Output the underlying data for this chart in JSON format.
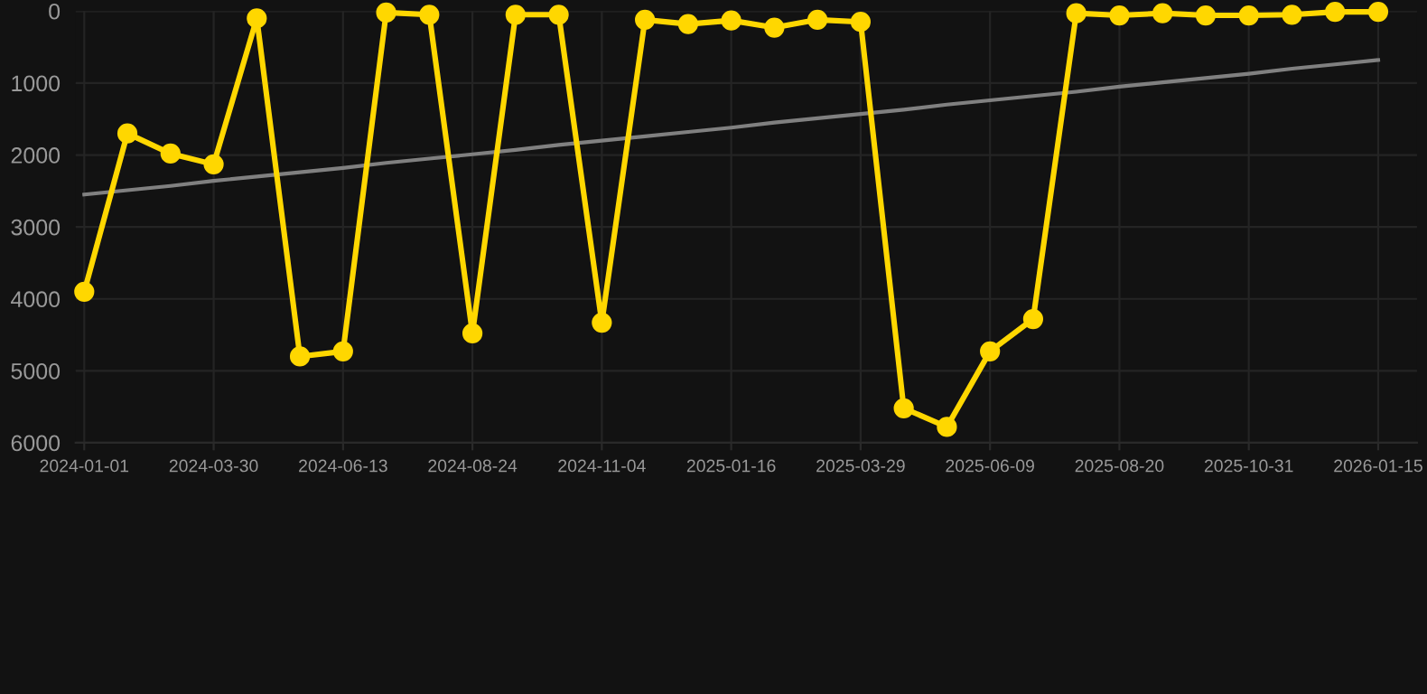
{
  "chart_data": {
    "type": "line",
    "categories": [
      "2024-01-01",
      null,
      null,
      "2024-03-30",
      null,
      null,
      "2024-06-13",
      null,
      null,
      "2024-08-24",
      null,
      null,
      "2024-11-04",
      null,
      null,
      "2025-01-16",
      null,
      null,
      "2025-03-29",
      null,
      null,
      "2025-06-09",
      null,
      null,
      "2025-08-20",
      null,
      null,
      "2025-10-31",
      null,
      null,
      "2026-01-15"
    ],
    "series": [
      {
        "color": "#ffd700",
        "marker": "circle",
        "values": [
          3900,
          1700,
          1980,
          2130,
          100,
          4800,
          4730,
          20,
          50,
          4480,
          50,
          50,
          4330,
          120,
          180,
          130,
          230,
          120,
          150,
          5520,
          5780,
          4730,
          4280,
          30,
          60,
          30,
          60,
          60,
          50,
          10,
          10
        ]
      },
      {
        "color": "#808080",
        "marker": "none",
        "values": [
          2550,
          2490,
          2430,
          2360,
          2300,
          2240,
          2180,
          2110,
          2050,
          1990,
          1930,
          1860,
          1800,
          1740,
          1680,
          1620,
          1550,
          1490,
          1430,
          1370,
          1300,
          1240,
          1180,
          1120,
          1050,
          990,
          930,
          870,
          800,
          740,
          680
        ]
      }
    ],
    "ylim": [
      6000,
      0
    ],
    "yticks": [
      0,
      1000,
      2000,
      3000,
      4000,
      5000,
      6000
    ],
    "grid": true
  }
}
